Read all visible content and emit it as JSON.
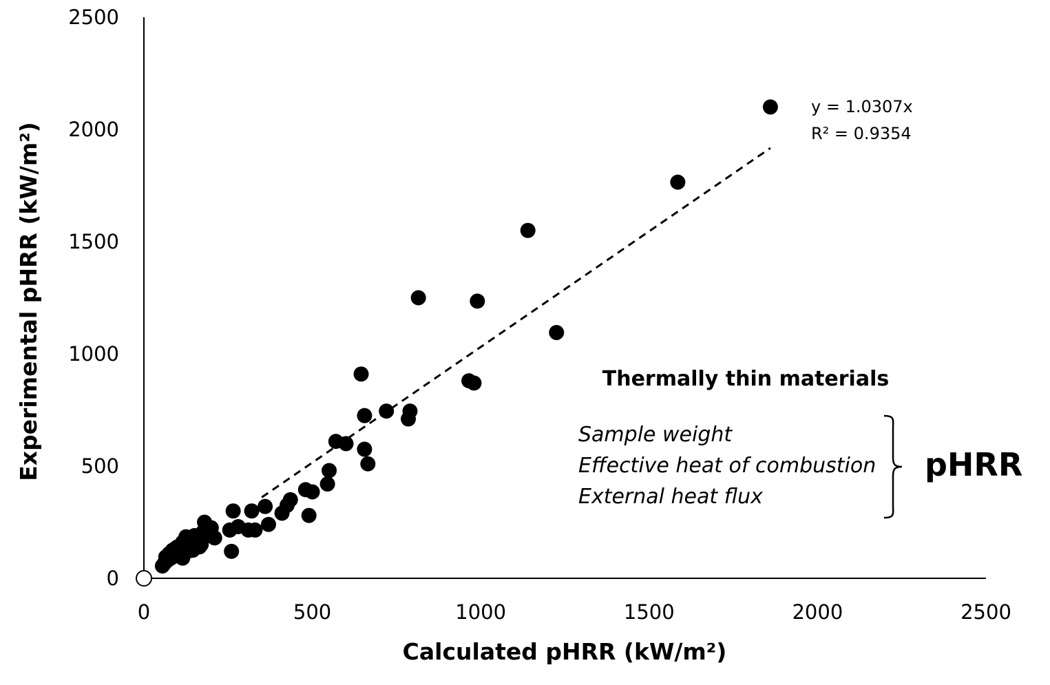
{
  "chart_data": {
    "type": "scatter",
    "title": "",
    "xlabel": "Calculated pHRR (kW/m²)",
    "ylabel": "Experimental pHRR (kW/m²)",
    "xlim": [
      0,
      2500
    ],
    "ylim": [
      0,
      2500
    ],
    "xticks": [
      "0",
      "500",
      "1000",
      "1500",
      "2000",
      "2500"
    ],
    "yticks": [
      "0",
      "500",
      "1000",
      "1500",
      "2000",
      "2500"
    ],
    "grid": false,
    "colors": {
      "points": "#000000",
      "trendline": "#000000",
      "axis": "#000000"
    },
    "series": [
      {
        "name": "Thermally thin materials",
        "x": [
          1860,
          1585,
          1140,
          815,
          990,
          1225,
          645,
          965,
          980,
          655,
          720,
          790,
          785,
          570,
          600,
          655,
          665,
          550,
          545,
          480,
          500,
          490,
          435,
          425,
          410,
          360,
          370,
          320,
          310,
          330,
          265,
          255,
          260,
          280,
          200,
          210,
          180,
          190,
          175,
          160,
          150,
          140,
          130,
          125,
          120,
          115,
          110,
          105,
          100,
          95,
          90,
          85,
          80,
          75,
          70,
          65,
          60,
          55,
          135,
          145,
          170,
          155,
          165,
          185,
          115,
          100,
          130,
          95
        ],
        "y": [
          2100,
          1765,
          1550,
          1250,
          1235,
          1095,
          910,
          880,
          870,
          725,
          745,
          745,
          710,
          610,
          600,
          575,
          510,
          480,
          420,
          395,
          385,
          280,
          350,
          325,
          290,
          320,
          240,
          300,
          215,
          215,
          300,
          215,
          120,
          230,
          225,
          180,
          250,
          190,
          205,
          175,
          190,
          140,
          170,
          185,
          150,
          160,
          130,
          110,
          140,
          120,
          100,
          125,
          90,
          110,
          80,
          95,
          65,
          55,
          155,
          125,
          150,
          170,
          140,
          200,
          90,
          100,
          120,
          135
        ]
      },
      {
        "name": "origin",
        "x": [
          0
        ],
        "y": [
          0
        ],
        "style": "hollow"
      }
    ],
    "trendline": {
      "type": "linear-through-origin",
      "slope": 1.0307,
      "x_range": [
        350,
        1860
      ],
      "equation": "y = 1.0307x",
      "r_squared": "R² = 0.9354"
    },
    "annotation": {
      "title": "Thermally thin materials",
      "items": [
        "Sample weight",
        "Effective heat of combustion",
        "External heat flux"
      ],
      "result": "pHRR"
    }
  }
}
